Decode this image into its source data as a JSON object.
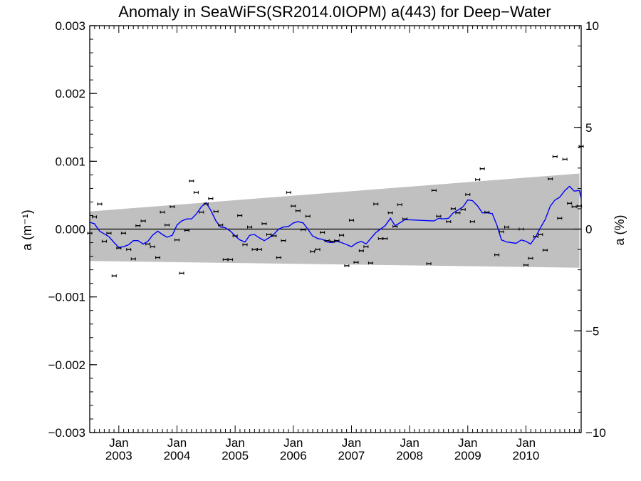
{
  "chart_data": {
    "type": "scatter",
    "title": "Anomaly in SeaWiFS(SR2014.0IOPM) a(443) for Deep−Water",
    "ylabel_left": "a (m⁻¹)",
    "ylabel_right": "a (%)",
    "xlabel": "",
    "ylim_left": [
      -0.003,
      0.003
    ],
    "ylim_right": [
      -10,
      10
    ],
    "xlim": [
      "2002-06",
      "2010-12"
    ],
    "grid": false,
    "legend": "none",
    "colors": {
      "running_mean": "#0000ff",
      "envelope": "#c0c0c0",
      "points": "#000000",
      "zero_line": "#000000"
    },
    "yticks_left": [
      "0.003",
      "0.002",
      "0.001",
      "0.000",
      "−0.001",
      "−0.002",
      "−0.003"
    ],
    "yticks_right": [
      "10",
      "5",
      "0",
      "−5",
      "−10"
    ],
    "xticks": [
      {
        "top": "Jan",
        "bottom": "2003",
        "date": 2003.0
      },
      {
        "top": "Jan",
        "bottom": "2004",
        "date": 2004.0
      },
      {
        "top": "Jan",
        "bottom": "2005",
        "date": 2005.0
      },
      {
        "top": "Jan",
        "bottom": "2006",
        "date": 2006.0
      },
      {
        "top": "Jan",
        "bottom": "2007",
        "date": 2007.0
      },
      {
        "top": "Jan",
        "bottom": "2008",
        "date": 2008.0
      },
      {
        "top": "Jan",
        "bottom": "2009",
        "date": 2009.0
      },
      {
        "top": "Jan",
        "bottom": "2010",
        "date": 2010.0
      }
    ],
    "envelope": {
      "upper": [
        [
          2002.5,
          0.00026
        ],
        [
          2010.92,
          0.00082
        ]
      ],
      "lower": [
        [
          2002.5,
          -0.00047
        ],
        [
          2010.92,
          -0.00057
        ]
      ]
    },
    "points": [
      [
        2002.5,
        -6e-05
      ],
      [
        2002.58,
        0.00018
      ],
      [
        2002.67,
        0.00037
      ],
      [
        2002.75,
        -0.00018
      ],
      [
        2002.83,
        -6e-05
      ],
      [
        2002.92,
        -0.00069
      ],
      [
        2003.0,
        -0.00028
      ],
      [
        2003.08,
        -6e-05
      ],
      [
        2003.17,
        -0.0003
      ],
      [
        2003.25,
        -0.00044
      ],
      [
        2003.33,
        5e-05
      ],
      [
        2003.42,
        0.00012
      ],
      [
        2003.5,
        -0.00022
      ],
      [
        2003.58,
        -0.00026
      ],
      [
        2003.67,
        -0.00042
      ],
      [
        2003.75,
        0.00025
      ],
      [
        2003.83,
        6e-05
      ],
      [
        2003.92,
        0.00033
      ],
      [
        2004.0,
        -0.00016
      ],
      [
        2004.08,
        -0.00065
      ],
      [
        2004.17,
        -2e-05
      ],
      [
        2004.25,
        0.00071
      ],
      [
        2004.33,
        0.00054
      ],
      [
        2004.42,
        0.00025
      ],
      [
        2004.5,
        0.00037
      ],
      [
        2004.58,
        0.00045
      ],
      [
        2004.67,
        0.00026
      ],
      [
        2004.75,
        6e-05
      ],
      [
        2004.83,
        -0.00045
      ],
      [
        2004.92,
        -0.00045
      ],
      [
        2005.0,
        -0.0001
      ],
      [
        2005.08,
        0.0002
      ],
      [
        2005.17,
        -0.00023
      ],
      [
        2005.25,
        3e-05
      ],
      [
        2005.33,
        -0.0003
      ],
      [
        2005.42,
        -0.0003
      ],
      [
        2005.5,
        8e-05
      ],
      [
        2005.58,
        -8e-05
      ],
      [
        2005.67,
        -0.0001
      ],
      [
        2005.75,
        -0.00042
      ],
      [
        2005.83,
        -0.00017
      ],
      [
        2005.92,
        0.00054
      ],
      [
        2006.0,
        0.00034
      ],
      [
        2006.08,
        0.00027
      ],
      [
        2006.17,
        -1e-05
      ],
      [
        2006.25,
        0.00019
      ],
      [
        2006.33,
        -0.00033
      ],
      [
        2006.42,
        -0.0003
      ],
      [
        2006.5,
        -5e-05
      ],
      [
        2006.58,
        -0.00017
      ],
      [
        2006.67,
        -0.00018
      ],
      [
        2006.75,
        -0.00017
      ],
      [
        2006.83,
        -9e-05
      ],
      [
        2006.92,
        -0.00054
      ],
      [
        2007.0,
        0.00013
      ],
      [
        2007.08,
        -0.00049
      ],
      [
        2007.17,
        -0.00032
      ],
      [
        2007.25,
        -0.00026
      ],
      [
        2007.33,
        -0.0005
      ],
      [
        2007.42,
        0.00037
      ],
      [
        2007.5,
        -0.00014
      ],
      [
        2007.58,
        -0.00014
      ],
      [
        2007.67,
        0.00024
      ],
      [
        2007.75,
        4e-05
      ],
      [
        2007.83,
        0.00036
      ],
      [
        2007.92,
        0.00015
      ],
      [
        2008.33,
        -0.00051
      ],
      [
        2008.42,
        0.00057
      ],
      [
        2008.5,
        0.00019
      ],
      [
        2008.67,
        0.00011
      ],
      [
        2008.75,
        0.0003
      ],
      [
        2008.83,
        0.00024
      ],
      [
        2008.92,
        0.00029
      ],
      [
        2009.0,
        0.00051
      ],
      [
        2009.08,
        0.00011
      ],
      [
        2009.17,
        0.00073
      ],
      [
        2009.25,
        0.00089
      ],
      [
        2009.33,
        0.00025
      ],
      [
        2009.5,
        -0.00038
      ],
      [
        2009.58,
        -4e-05
      ],
      [
        2009.67,
        3e-05
      ],
      [
        2009.92,
        0.0
      ],
      [
        2010.0,
        -0.00053
      ],
      [
        2010.08,
        -0.00043
      ],
      [
        2010.17,
        -0.00011
      ],
      [
        2010.25,
        -8e-05
      ],
      [
        2010.33,
        -0.00031
      ],
      [
        2010.42,
        0.00074
      ],
      [
        2010.5,
        0.00107
      ],
      [
        2010.58,
        0.00016
      ],
      [
        2010.67,
        0.00103
      ],
      [
        2010.75,
        0.00038
      ],
      [
        2010.83,
        0.00033
      ],
      [
        2010.92,
        0.00034
      ],
      [
        2010.95,
        0.00122
      ]
    ],
    "running_mean": [
      [
        2002.5,
        0.0001
      ],
      [
        2002.58,
        8e-05
      ],
      [
        2002.67,
        -3e-05
      ],
      [
        2002.75,
        -7e-05
      ],
      [
        2002.83,
        -0.00011
      ],
      [
        2002.92,
        -0.0002
      ],
      [
        2003.0,
        -0.00027
      ],
      [
        2003.08,
        -0.00026
      ],
      [
        2003.17,
        -0.00023
      ],
      [
        2003.25,
        -0.00017
      ],
      [
        2003.33,
        -0.00017
      ],
      [
        2003.42,
        -0.00022
      ],
      [
        2003.5,
        -0.00018
      ],
      [
        2003.58,
        -9e-05
      ],
      [
        2003.67,
        -3e-05
      ],
      [
        2003.75,
        -8e-05
      ],
      [
        2003.83,
        -0.00012
      ],
      [
        2003.92,
        -9e-05
      ],
      [
        2004.0,
        6e-05
      ],
      [
        2004.08,
        0.00012
      ],
      [
        2004.17,
        0.00015
      ],
      [
        2004.25,
        0.00015
      ],
      [
        2004.33,
        0.00022
      ],
      [
        2004.42,
        0.00033
      ],
      [
        2004.5,
        0.00039
      ],
      [
        2004.58,
        0.00028
      ],
      [
        2004.67,
        0.00012
      ],
      [
        2004.75,
        3e-05
      ],
      [
        2004.83,
        2e-05
      ],
      [
        2004.92,
        -3e-05
      ],
      [
        2005.0,
        -0.0001
      ],
      [
        2005.08,
        -0.00016
      ],
      [
        2005.17,
        -0.00019
      ],
      [
        2005.25,
        -9e-05
      ],
      [
        2005.33,
        -8e-05
      ],
      [
        2005.42,
        -0.00013
      ],
      [
        2005.5,
        -0.00017
      ],
      [
        2005.58,
        -0.00013
      ],
      [
        2005.67,
        -7e-05
      ],
      [
        2005.75,
        -0.0
      ],
      [
        2005.83,
        3e-05
      ],
      [
        2005.92,
        4e-05
      ],
      [
        2006.0,
        9e-05
      ],
      [
        2006.08,
        0.00011
      ],
      [
        2006.17,
        9e-05
      ],
      [
        2006.25,
        -0.0
      ],
      [
        2006.33,
        -0.0001
      ],
      [
        2006.42,
        -0.00014
      ],
      [
        2006.5,
        -0.00015
      ],
      [
        2006.58,
        -0.00019
      ],
      [
        2006.67,
        -0.0002
      ],
      [
        2006.75,
        -0.00018
      ],
      [
        2006.83,
        -0.0002
      ],
      [
        2006.92,
        -0.00023
      ],
      [
        2007.0,
        -0.00026
      ],
      [
        2007.08,
        -0.00021
      ],
      [
        2007.17,
        -0.00018
      ],
      [
        2007.25,
        -0.00022
      ],
      [
        2007.33,
        -0.00014
      ],
      [
        2007.42,
        -5e-05
      ],
      [
        2007.5,
        0.0
      ],
      [
        2007.58,
        5e-05
      ],
      [
        2007.67,
        0.00016
      ],
      [
        2007.75,
        5e-05
      ],
      [
        2007.83,
        9e-05
      ],
      [
        2007.92,
        0.00014
      ],
      [
        2008.42,
        0.00012
      ],
      [
        2008.5,
        0.00016
      ],
      [
        2008.58,
        0.00015
      ],
      [
        2008.67,
        0.00016
      ],
      [
        2008.75,
        0.00024
      ],
      [
        2008.83,
        0.00028
      ],
      [
        2008.92,
        0.00033
      ],
      [
        2009.0,
        0.00043
      ],
      [
        2009.08,
        0.00042
      ],
      [
        2009.17,
        0.00034
      ],
      [
        2009.25,
        0.00024
      ],
      [
        2009.33,
        0.00024
      ],
      [
        2009.42,
        0.00023
      ],
      [
        2009.5,
        6e-05
      ],
      [
        2009.58,
        -0.00016
      ],
      [
        2009.67,
        -0.00019
      ],
      [
        2009.75,
        -0.0002
      ],
      [
        2009.83,
        -0.00021
      ],
      [
        2009.92,
        -0.00016
      ],
      [
        2010.0,
        -0.00018
      ],
      [
        2010.08,
        -0.00022
      ],
      [
        2010.17,
        -0.00011
      ],
      [
        2010.25,
        2e-05
      ],
      [
        2010.33,
        0.00014
      ],
      [
        2010.42,
        0.00034
      ],
      [
        2010.5,
        0.00043
      ],
      [
        2010.58,
        0.00047
      ],
      [
        2010.67,
        0.00057
      ],
      [
        2010.75,
        0.00063
      ],
      [
        2010.83,
        0.00056
      ],
      [
        2010.92,
        0.00057
      ],
      [
        2010.95,
        0.00045
      ]
    ]
  }
}
